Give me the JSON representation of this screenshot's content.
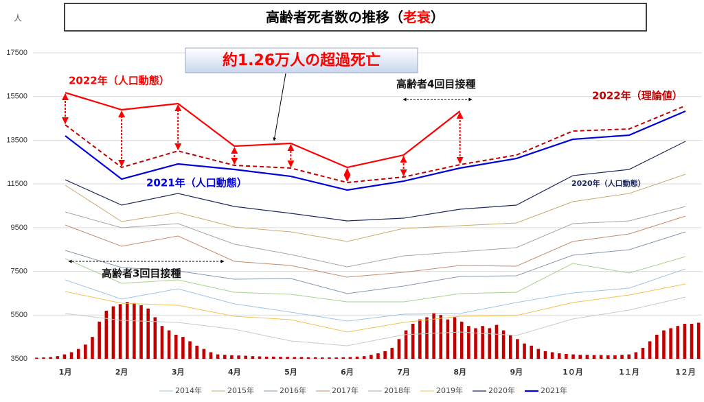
{
  "chart_data": {
    "type": "line",
    "title": "高齢者死者数の推移（",
    "title_highlight": "老衰",
    "title_end": "）",
    "y_unit": "人",
    "categories": [
      "1月",
      "2月",
      "3月",
      "4月",
      "5月",
      "6月",
      "7月",
      "8月",
      "9月",
      "1０月",
      "1１月",
      "1２月"
    ],
    "ylim": [
      3500,
      17500
    ],
    "yticks": [
      3500,
      5500,
      7500,
      9500,
      11500,
      13500,
      15500,
      17500
    ],
    "grid": true,
    "series": [
      {
        "name": "2014年",
        "color": "#9dc3e6",
        "width": 1,
        "values": [
          7110,
          6231,
          6702,
          6011,
          5635,
          5226,
          5540,
          5572,
          6074,
          6513,
          6733,
          7612
        ]
      },
      {
        "name": "2015年",
        "color": "#c9a96e",
        "width": 1,
        "values": [
          11442,
          9778,
          10186,
          9527,
          9307,
          8868,
          9464,
          9590,
          9715,
          10688,
          11065,
          11944
        ]
      },
      {
        "name": "2016年",
        "color": "#8497b0",
        "width": 1,
        "values": [
          8460,
          7675,
          7518,
          7141,
          7173,
          6482,
          6827,
          7267,
          7298,
          8240,
          8491,
          9307
        ]
      },
      {
        "name": "2017年",
        "color": "#c58b6b",
        "width": 1,
        "values": [
          9621,
          8648,
          9119,
          7957,
          7769,
          7235,
          7455,
          7769,
          7738,
          8868,
          9213,
          10029
        ]
      },
      {
        "name": "2018年",
        "color": "#a5a5a5",
        "width": 1,
        "values": [
          10217,
          9495,
          9684,
          8742,
          8271,
          7706,
          8209,
          8397,
          8585,
          9684,
          9809,
          10469
        ]
      },
      {
        "name": "2019年",
        "color": "#f2c14e",
        "width": 1,
        "values": [
          6576,
          6043,
          5948,
          5446,
          5289,
          4724,
          5164,
          5446,
          5478,
          6074,
          6419,
          6922
        ]
      },
      {
        "name": "2020年",
        "color": "#1f2a5c",
        "width": 1.2,
        "values": [
          11692,
          10531,
          11064,
          10468,
          10154,
          9809,
          9934,
          10342,
          10531,
          11880,
          12163,
          13450
        ]
      },
      {
        "name": "2021年",
        "color": "#0000dd",
        "width": 2.2,
        "values": [
          13701,
          11723,
          12414,
          12163,
          11849,
          11221,
          11629,
          12226,
          12665,
          13544,
          13732,
          14831
        ]
      },
      {
        "color": "#ff0000",
        "width": 2.2,
        "values": [
          15678,
          14894,
          15176,
          13230,
          13356,
          12257,
          12822,
          14831,
          null,
          null,
          null,
          null
        ]
      },
      {
        "color": "#c00000",
        "width": 2,
        "dashed": true,
        "values": [
          14203,
          12257,
          13010,
          12351,
          12226,
          11566,
          11818,
          12383,
          12822,
          13920,
          14015,
          15082
        ]
      },
      {
        "color": "#a9d18e",
        "width": 1,
        "values": [
          8083,
          6953,
          7110,
          6545,
          6451,
          6105,
          6105,
          6482,
          6545,
          7863,
          7424,
          8177
        ]
      },
      {
        "color": "#c9c9c9",
        "width": 1,
        "values": [
          5572,
          5258,
          5164,
          4850,
          4316,
          4096,
          4599,
          4724,
          4567,
          5321,
          5729,
          6325
        ]
      }
    ],
    "daily_bars": {
      "color": "#c00000",
      "values": [
        3550,
        3560,
        3580,
        3620,
        3700,
        3800,
        3950,
        4150,
        4500,
        5200,
        5700,
        5900,
        6000,
        6100,
        6050,
        5950,
        5800,
        5400,
        5000,
        4800,
        4600,
        4500,
        4300,
        4100,
        3950,
        3800,
        3700,
        3680,
        3660,
        3650,
        3640,
        3620,
        3610,
        3600,
        3600,
        3590,
        3590,
        3580,
        3580,
        3570,
        3570,
        3560,
        3560,
        3560,
        3570,
        3580,
        3600,
        3620,
        3680,
        3750,
        3850,
        4000,
        4400,
        4800,
        5100,
        5300,
        5400,
        5600,
        5500,
        5300,
        5400,
        5200,
        5000,
        4900,
        5000,
        4900,
        5050,
        4800,
        4600,
        4400,
        4200,
        4100,
        3950,
        3850,
        3800,
        3750,
        3720,
        3700,
        3680,
        3680,
        3670,
        3670,
        3660,
        3660,
        3680,
        3700,
        3800,
        4000,
        4300,
        4600,
        4800,
        4900,
        5000,
        5100,
        5100,
        5150
      ]
    },
    "annotations": [
      "約1.26万人の超過死亡",
      "2022年（人口動態）",
      "2021年（人口動態）",
      "2020年（人口動態）",
      "2022年（理論値）",
      "高齢者4回目接種",
      "高齢者3回目接種"
    ]
  }
}
